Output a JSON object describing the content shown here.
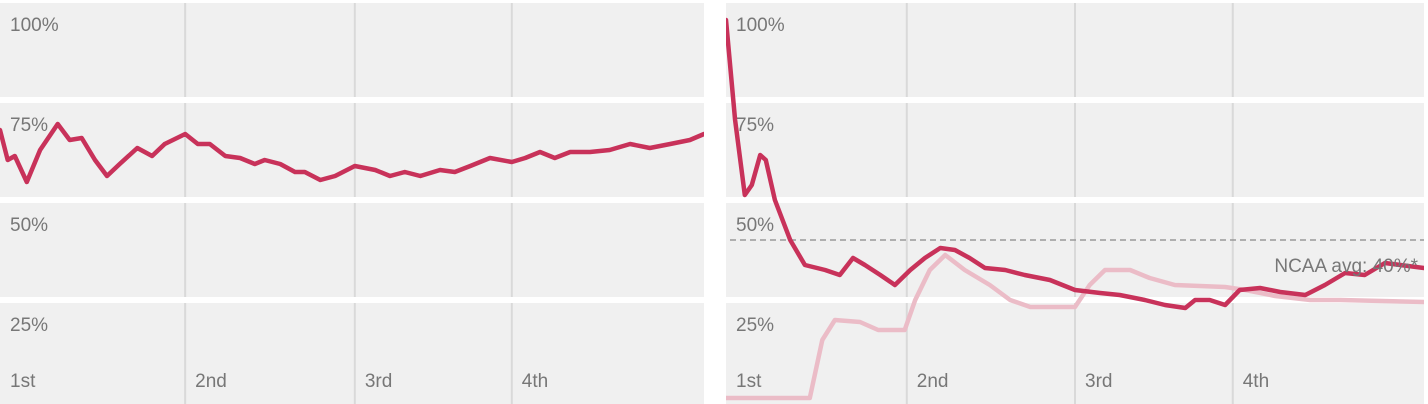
{
  "chart_data": [
    {
      "type": "line",
      "xlim": [
        0,
        100
      ],
      "ylim": [
        0,
        100
      ],
      "xticks": [
        {
          "value": 0,
          "label": "1st"
        },
        {
          "value": 26.3,
          "label": "2nd"
        },
        {
          "value": 50.4,
          "label": "3rd"
        },
        {
          "value": 72.7,
          "label": "4th"
        }
      ],
      "yticks": [
        {
          "value": 25,
          "label": "25%"
        },
        {
          "value": 50,
          "label": "50%"
        },
        {
          "value": 75,
          "label": "75%"
        },
        {
          "value": 100,
          "label": "100%"
        }
      ],
      "grid": true,
      "series": [
        {
          "color": "#c8325a",
          "x": [
            0,
            1.1,
            2.1,
            3.8,
            5.7,
            8.2,
            9.9,
            11.6,
            13.5,
            15.2,
            17,
            19.5,
            21.6,
            23.4,
            26.3,
            28.1,
            29.8,
            32,
            34.1,
            36.2,
            37.6,
            39.8,
            41.9,
            43.3,
            45.5,
            47.6,
            50.4,
            53.3,
            55.4,
            57.5,
            59.7,
            62.5,
            64.6,
            66.8,
            69.6,
            72.7,
            74.6,
            76.7,
            78.8,
            81,
            83.8,
            86.6,
            89.5,
            92.3,
            95.2,
            98,
            100
          ],
          "values": [
            67.5,
            60,
            61,
            54.5,
            62.5,
            69,
            65,
            65.5,
            60,
            56,
            59,
            63,
            61,
            64,
            66.5,
            64,
            64,
            61,
            60.5,
            59,
            60,
            59,
            57,
            57,
            55,
            56,
            58.5,
            57.5,
            56,
            57,
            56,
            57.5,
            57,
            58.5,
            60.5,
            59.5,
            60.5,
            62,
            60.5,
            62,
            62,
            62.5,
            64,
            63,
            64,
            65,
            66.5
          ]
        }
      ]
    },
    {
      "type": "line",
      "xlim": [
        0,
        100
      ],
      "ylim": [
        0,
        100
      ],
      "xticks": [
        {
          "value": 0,
          "label": "1st"
        },
        {
          "value": 25.9,
          "label": "2nd"
        },
        {
          "value": 50,
          "label": "3rd"
        },
        {
          "value": 72.6,
          "label": "4th"
        }
      ],
      "yticks": [
        {
          "value": 25,
          "label": "25%"
        },
        {
          "value": 50,
          "label": "50%"
        },
        {
          "value": 75,
          "label": "75%"
        },
        {
          "value": 100,
          "label": "100%"
        }
      ],
      "grid": true,
      "reference": 40,
      "annotation": "NCAA avg: 40%*",
      "series": [
        {
          "color": "#ebbcc7",
          "x": [
            0,
            12,
            13.8,
            15.6,
            19.2,
            21.8,
            25.6,
            27.1,
            29.2,
            31.4,
            34.2,
            37.8,
            40.7,
            43.6,
            50,
            52.1,
            54.3,
            57.9,
            60.7,
            64.3,
            71.5,
            74.4,
            78.7,
            83.7,
            88,
            100
          ],
          "values": [
            0.5,
            0.5,
            15,
            20,
            19.5,
            17.5,
            17.5,
            25,
            32.5,
            36.25,
            32.5,
            28.75,
            25,
            23.25,
            23.25,
            28.75,
            32.5,
            32.5,
            30.5,
            28.75,
            28.25,
            27.5,
            26,
            25,
            25,
            24.5
          ]
        },
        {
          "color": "#c8325a",
          "x": [
            0,
            1.3,
            2.7,
            3.7,
            4.9,
            5.7,
            7,
            9.2,
            11.3,
            14.2,
            16.3,
            18.2,
            19.9,
            22.1,
            24.2,
            26.4,
            28.5,
            30.7,
            32.8,
            34.9,
            37.1,
            40,
            42.8,
            46.4,
            50,
            53.6,
            56.4,
            60,
            62.9,
            65.8,
            67.2,
            69.3,
            71.5,
            73.6,
            76.5,
            79.4,
            83,
            85.8,
            88.7,
            91.5,
            94.4,
            96.6,
            100
          ],
          "values": [
            95,
            70,
            51.25,
            53.75,
            61.25,
            60,
            50,
            40,
            33.75,
            32.5,
            31.25,
            35.5,
            33.75,
            31.25,
            28.75,
            32.5,
            35.5,
            38,
            37.5,
            35.5,
            33,
            32.5,
            31.25,
            30,
            27.5,
            26.75,
            26.25,
            25,
            23.75,
            23,
            25,
            25,
            23.75,
            27.5,
            28,
            27,
            26.25,
            28.75,
            31.75,
            31.25,
            34.25,
            33.75,
            33
          ]
        }
      ]
    }
  ]
}
